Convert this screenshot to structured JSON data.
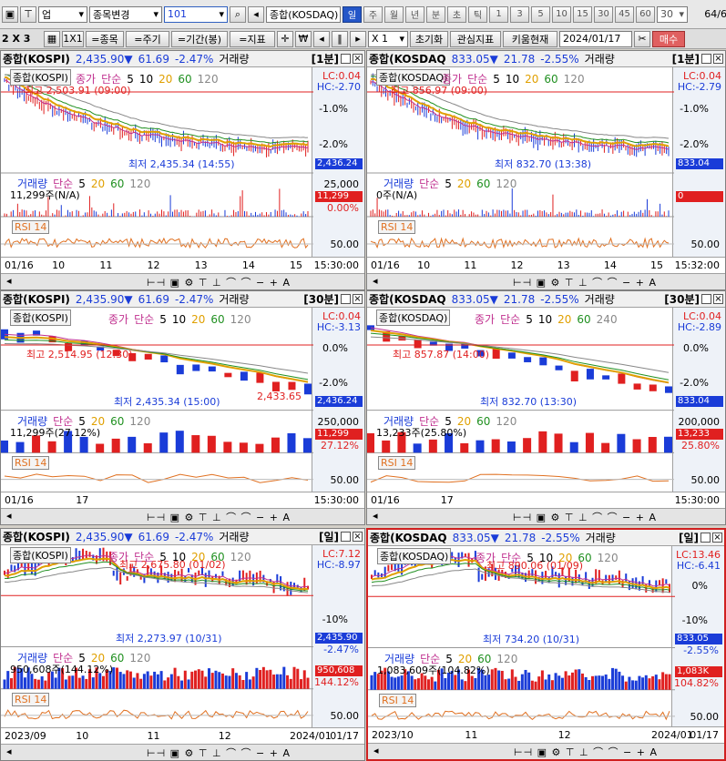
{
  "toolbar1": {
    "market": "업",
    "stock_change": "종목변경",
    "code": "101",
    "search_value": "종합(KOSDAQ)",
    "periods": [
      "일",
      "주",
      "월",
      "년",
      "분",
      "초",
      "틱"
    ],
    "period_active": "일",
    "nums": [
      "1",
      "3",
      "5",
      "10",
      "15",
      "30",
      "45",
      "60"
    ],
    "count_value": "30",
    "page": "64",
    "page_total": "/600"
  },
  "toolbar2": {
    "layout": "2 X 3",
    "one": "1X1",
    "btn_stock": "=종목",
    "btn_period": "=주기",
    "btn_range": "=기간(봉)",
    "btn_indicator": "=지표",
    "mult": "X 1",
    "reset": "초기화",
    "interest": "관심지표",
    "kiwoom": "키움현재",
    "date": "2024/01/17",
    "buy": "매수"
  },
  "panels": [
    {
      "name": "종합(KOSPI)",
      "price": "2,435.90",
      "change": "61.69",
      "pct": "-2.47%",
      "vol": "거래량",
      "interval": "[1분]",
      "label": "종합(KOSPI)",
      "lc": "LC:0.04",
      "hc": "HC:-2.70",
      "axis": [
        "-1.0%",
        "-2.0%"
      ],
      "hi": "최고 2,503.91 (09:00)",
      "lo": "최저 2,435.34 (14:55)",
      "cur": "2,436.24",
      "legend": [
        "종가",
        "단순",
        "5",
        "10",
        "20",
        "60",
        "120"
      ],
      "vol_legend": [
        "거래량",
        "단순",
        "5",
        "20",
        "60",
        "120"
      ],
      "vol_val": "11,299주(N/A)",
      "vol_axis": "25,000",
      "vol_badge": "11,299",
      "vol_pct": "0.00%",
      "rsi": "RSI 14",
      "rsi_axis": "50.00",
      "xticks": [
        "01/16",
        "10",
        "11",
        "12",
        "13",
        "14",
        "15"
      ],
      "xend": "15:30:00"
    },
    {
      "name": "종합(KOSDAQ",
      "price": "833.05",
      "change": "21.78",
      "pct": "-2.55%",
      "vol": "거래량",
      "interval": "[1분]",
      "label": "종합(KOSDAQ)",
      "lc": "LC:0.04",
      "hc": "HC:-2.79",
      "axis": [
        "-1.0%",
        "-2.0%"
      ],
      "hi": "최고 856.97 (09:00)",
      "lo": "최저 832.70 (13:38)",
      "cur": "833.04",
      "legend": [
        "종가",
        "단순",
        "5",
        "10",
        "20",
        "60",
        "120"
      ],
      "vol_legend": [
        "거래량",
        "단순",
        "5",
        "20",
        "60",
        "120"
      ],
      "vol_val": "0주(N/A)",
      "vol_axis": "",
      "vol_badge": "0",
      "vol_pct": "",
      "rsi": "RSI 14",
      "rsi_axis": "50.00",
      "xticks": [
        "01/16",
        "10",
        "11",
        "12",
        "13",
        "14",
        "15"
      ],
      "xend": "15:32:00"
    },
    {
      "name": "종합(KOSPI)",
      "price": "2,435.90",
      "change": "61.69",
      "pct": "-2.47%",
      "vol": "거래량",
      "interval": "[30분]",
      "label": "종합(KOSPI)",
      "lc": "LC:0.04",
      "hc": "HC:-3.13",
      "axis": [
        "0.0%",
        "-2.0%"
      ],
      "hi": "최고 2,514.95 (12:30)",
      "lo": "최저 2,435.34 (15:00)",
      "cur": "2,436.24",
      "extra": "2,433.65",
      "legend": [
        "종가",
        "단순",
        "5",
        "10",
        "20",
        "60",
        "120"
      ],
      "vol_legend": [
        "거래량",
        "단순",
        "5",
        "20",
        "60",
        "120"
      ],
      "vol_val": "11,299주(27.12%)",
      "vol_axis": "250,000",
      "vol_badge": "11,299",
      "vol_pct": "27.12%",
      "rsi": "RSI 14",
      "rsi_axis": "50.00",
      "xticks": [
        "01/16",
        "17"
      ],
      "xend": "15:30:00"
    },
    {
      "name": "종합(KOSDAQ",
      "price": "833.05",
      "change": "21.78",
      "pct": "-2.55%",
      "vol": "거래량",
      "interval": "[30분]",
      "label": "종합(KOSDAQ)",
      "lc": "LC:0.04",
      "hc": "HC:-2.89",
      "axis": [
        "0.0%",
        "-2.0%"
      ],
      "hi": "최고 857.87 (14:00)",
      "lo": "최저 832.70 (13:30)",
      "cur": "833.04",
      "legend": [
        "종가",
        "단순",
        "5",
        "10",
        "20",
        "60",
        "240"
      ],
      "vol_legend": [
        "거래량",
        "단순",
        "5",
        "20",
        "60",
        "120"
      ],
      "vol_val": "13,233주(25.80%)",
      "vol_axis": "200,000",
      "vol_badge": "13,233",
      "vol_pct": "25.80%",
      "rsi": "RSI 14",
      "rsi_axis": "50.00",
      "xticks": [
        "01/16",
        "17"
      ],
      "xend": "15:30:00"
    },
    {
      "name": "종합(KOSPI)",
      "price": "2,435.90",
      "change": "61.69",
      "pct": "-2.47%",
      "vol": "거래량",
      "interval": "[일]",
      "label": "종합(KOSPI)",
      "lc": "LC:7.12",
      "hc": "HC:-8.97",
      "axis": [
        "",
        "-10%"
      ],
      "hi": "최고 2,675.80 (01/02)",
      "lo": "최저 2,273.97 (10/31)",
      "cur": "2,435.90",
      "cur_pct": "-2.47%",
      "legend": [
        "종가",
        "단순",
        "5",
        "10",
        "20",
        "60",
        "120"
      ],
      "vol_legend": [
        "거래량",
        "단순",
        "5",
        "20",
        "60",
        "120"
      ],
      "vol_val": "950,608주(144.12%)",
      "vol_axis": "",
      "vol_badge": "950,608",
      "vol_pct": "144.12%",
      "rsi": "RSI 14",
      "rsi_axis": "50.00",
      "xticks": [
        "2023/09",
        "10",
        "11",
        "12",
        "2024/01"
      ],
      "xend": "01/17"
    },
    {
      "name": "종합(KOSDAQ",
      "price": "833.05",
      "change": "21.78",
      "pct": "-2.55%",
      "vol": "거래량",
      "interval": "[일]",
      "label": "종합(KOSDAQ)",
      "lc": "LC:13.46",
      "hc": "HC:-6.41",
      "axis": [
        "0%",
        "-10%"
      ],
      "hi": "최고 890.06 (01/09)",
      "lo": "최저 734.20 (10/31)",
      "cur": "833.05",
      "cur_pct": "-2.55%",
      "legend": [
        "종가",
        "단순",
        "5",
        "10",
        "20",
        "60",
        "120"
      ],
      "vol_legend": [
        "거래량",
        "단순",
        "5",
        "20",
        "60",
        "120"
      ],
      "vol_val": "1,083,609주(104.82%)",
      "vol_axis": "",
      "vol_badge": "1,083K",
      "vol_pct": "104.82%",
      "rsi": "RSI 14",
      "rsi_axis": "50.00",
      "xticks": [
        "2023/10",
        "11",
        "12",
        "2024/01"
      ],
      "xend": "01/17"
    }
  ]
}
